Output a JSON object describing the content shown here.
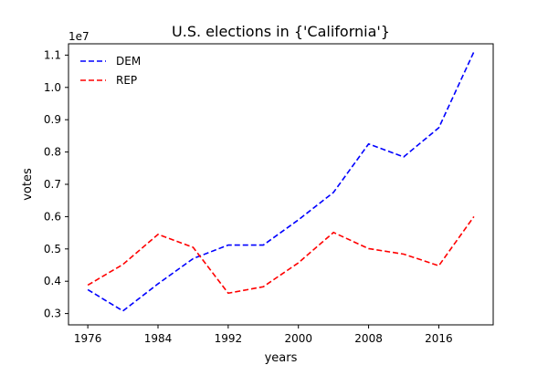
{
  "chart_data": {
    "type": "line",
    "title": "U.S. elections in {'California'}",
    "xlabel": "years",
    "ylabel": "votes",
    "y_offset_label": "1e7",
    "x_ticks": [
      1976,
      1984,
      1992,
      2000,
      2008,
      2016
    ],
    "x_tick_labels": [
      "1976",
      "1984",
      "1992",
      "2000",
      "2008",
      "2016"
    ],
    "y_ticks": [
      0.3,
      0.4,
      0.5,
      0.6,
      0.7,
      0.8,
      0.9,
      1.0,
      1.1
    ],
    "y_tick_labels": [
      "0.3",
      "0.4",
      "0.5",
      "0.6",
      "0.7",
      "0.8",
      "0.9",
      "1.0",
      "1.1"
    ],
    "xlim": [
      1973.8,
      2022.2
    ],
    "ylim": [
      0.265,
      1.135
    ],
    "y_scale_multiplier": 10000000,
    "grid": false,
    "legend_position": "top-left",
    "x": [
      1976,
      1980,
      1984,
      1988,
      1992,
      1996,
      2000,
      2004,
      2008,
      2012,
      2016,
      2020
    ],
    "series": [
      {
        "name": "DEM",
        "color": "#0000ff",
        "linestyle": "dashed",
        "values": [
          0.374,
          0.308,
          0.392,
          0.47,
          0.512,
          0.512,
          0.59,
          0.675,
          0.825,
          0.785,
          0.875,
          1.11
        ]
      },
      {
        "name": "REP",
        "color": "#ff0000",
        "linestyle": "dashed",
        "values": [
          0.388,
          0.452,
          0.545,
          0.505,
          0.363,
          0.383,
          0.457,
          0.551,
          0.501,
          0.484,
          0.448,
          0.6
        ]
      }
    ]
  }
}
